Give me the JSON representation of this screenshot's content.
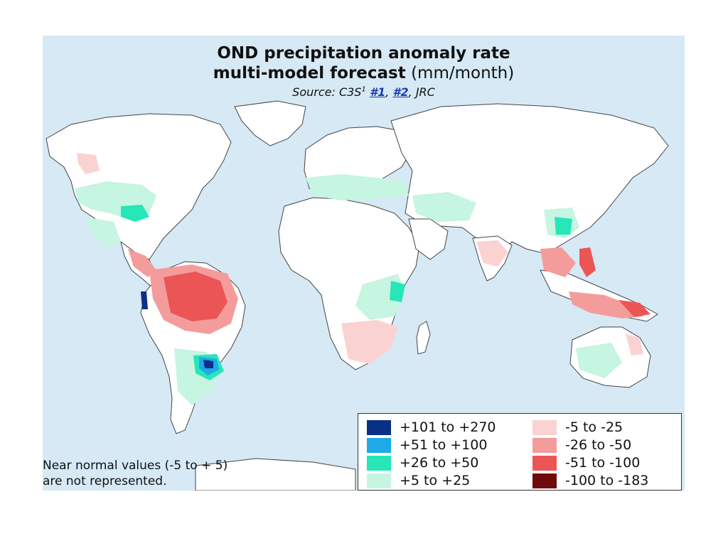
{
  "title": {
    "line1": "OND precipitation anomaly rate",
    "line2_bold": "multi-model forecast",
    "line2_unit": "(mm/month)",
    "source_prefix": "Source: C3S",
    "source_sup": "1",
    "source_link1": "#1",
    "source_sep": ", ",
    "source_link2": "#2",
    "source_suffix": ", JRC"
  },
  "legend": {
    "positive": [
      {
        "label": "+101 to +270",
        "color": "#0a2f86"
      },
      {
        "label": "+51 to +100",
        "color": "#1ea9e8"
      },
      {
        "label": "+26 to +50",
        "color": "#27e6b8"
      },
      {
        "label": "+5 to +25",
        "color": "#c6f5e2"
      }
    ],
    "negative": [
      {
        "label": "-5 to -25",
        "color": "#fbd2d2"
      },
      {
        "label": "-26 to -50",
        "color": "#f49c9c"
      },
      {
        "label": "-51 to -100",
        "color": "#ec5555"
      },
      {
        "label": "-100 to -183",
        "color": "#6f0a0a"
      }
    ]
  },
  "note": {
    "line1": "Near normal values (-5 to + 5)",
    "line2": "are not represented."
  },
  "colors": {
    "ocean": "#d6e9f5",
    "land": "#ffffff",
    "border": "#333333"
  }
}
